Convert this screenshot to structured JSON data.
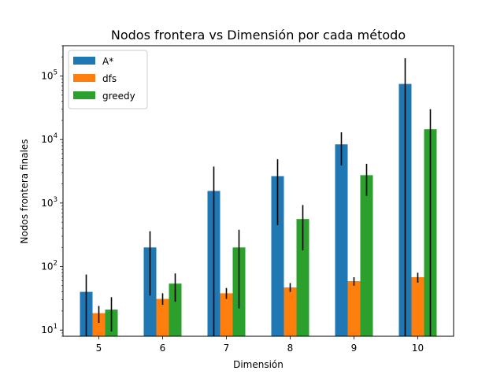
{
  "chart_data": {
    "type": "bar",
    "title": "Nodos frontera vs Dimensión por cada método",
    "xlabel": "Dimensión",
    "ylabel": "Nodos frontera finales",
    "yscale": "log",
    "ylim": [
      8,
      300000
    ],
    "categories": [
      "5",
      "6",
      "7",
      "8",
      "9",
      "10"
    ],
    "y_ticks": [
      {
        "base": "10",
        "exp": "1",
        "value": 10
      },
      {
        "base": "10",
        "exp": "2",
        "value": 100
      },
      {
        "base": "10",
        "exp": "3",
        "value": 1000
      },
      {
        "base": "10",
        "exp": "4",
        "value": 10000
      },
      {
        "base": "10",
        "exp": "5",
        "value": 100000
      }
    ],
    "legend_position": "top-left",
    "grid": false,
    "series": [
      {
        "name": "A*",
        "color": "#1f77b4",
        "values": [
          40,
          200,
          1550,
          2650,
          8400,
          75000
        ],
        "err_low": [
          1,
          35,
          1,
          450,
          3900,
          1
        ],
        "err_high": [
          75,
          360,
          3750,
          4900,
          13000,
          190000
        ]
      },
      {
        "name": "dfs",
        "color": "#ff7f0e",
        "values": [
          18.5,
          31,
          38,
          47,
          59,
          68
        ],
        "err_low": [
          13,
          25,
          31,
          40,
          50,
          56
        ],
        "err_high": [
          24,
          38,
          46,
          55,
          68,
          80
        ]
      },
      {
        "name": "greedy",
        "color": "#2ca02c",
        "values": [
          21,
          54,
          200,
          560,
          2750,
          14500
        ],
        "err_low": [
          9.5,
          28,
          22,
          180,
          1300,
          1
        ],
        "err_high": [
          33,
          78,
          380,
          930,
          4150,
          30000
        ]
      }
    ]
  }
}
